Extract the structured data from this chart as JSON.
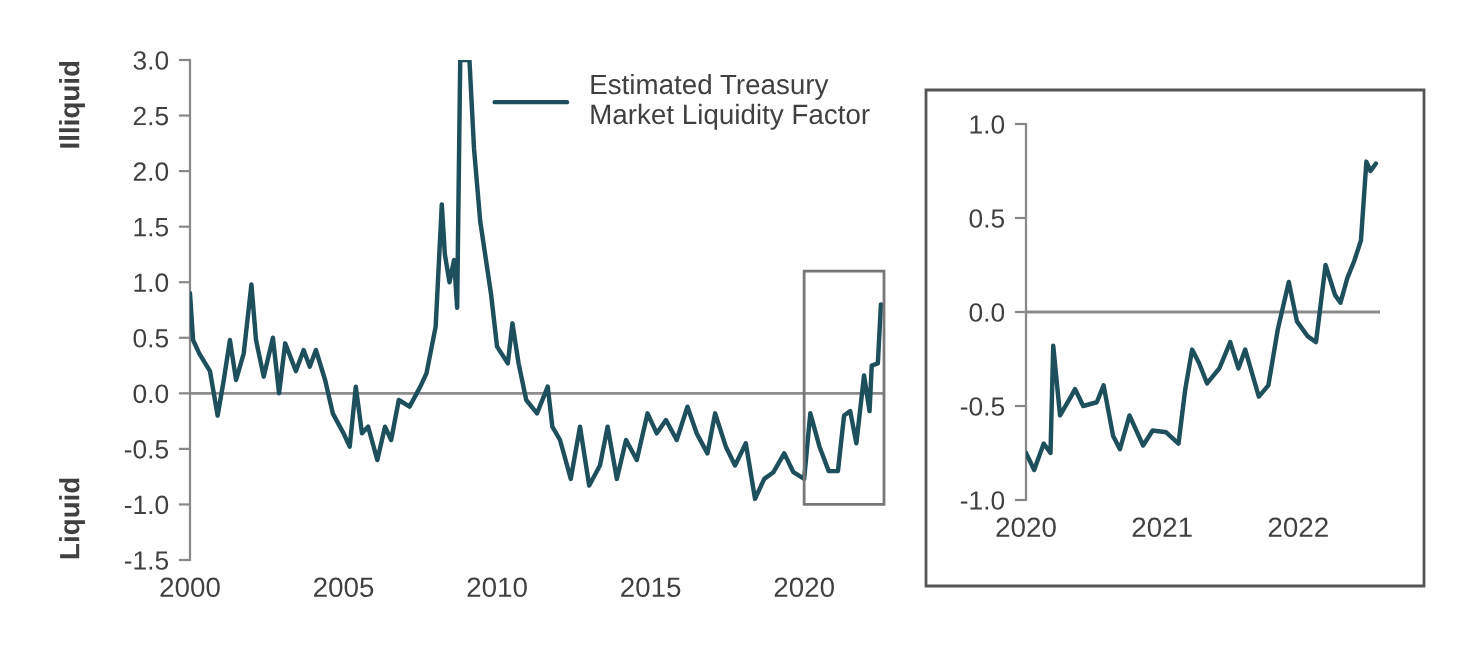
{
  "chart_data": [
    {
      "type": "line",
      "xlim": [
        2000,
        2022.6
      ],
      "ylim": [
        -1.5,
        3.0
      ],
      "xticks": [
        2000,
        2005,
        2010,
        2015,
        2020
      ],
      "yticks": [
        {
          "value": -1.5,
          "label": "-1.5"
        },
        {
          "value": -1.0,
          "label": "-1.0"
        },
        {
          "value": -0.5,
          "label": "-0.5"
        },
        {
          "value": 0.0,
          "label": "0.0"
        },
        {
          "value": 0.5,
          "label": "0.5"
        },
        {
          "value": 1.0,
          "label": "1.0"
        },
        {
          "value": 1.5,
          "label": "1.5"
        },
        {
          "value": 2.0,
          "label": "2.0"
        },
        {
          "value": 2.5,
          "label": "2.5"
        },
        {
          "value": 3.0,
          "label": "3.0"
        }
      ],
      "grid": false,
      "legend": "top right",
      "ref_lines": [
        {
          "axis": "y",
          "value": 0,
          "color": "#8c8c8c"
        }
      ],
      "annotations": [
        "Illiquid",
        "Liquid"
      ],
      "series": [
        {
          "name": "Estimated Treasury\nMarket Liquidity Factor",
          "color": "#1d4f5c",
          "x": [
            2000.0,
            2000.1,
            2000.3,
            2000.65,
            2000.9,
            2001.1,
            2001.3,
            2001.5,
            2001.75,
            2002.0,
            2002.15,
            2002.4,
            2002.7,
            2002.9,
            2003.1,
            2003.45,
            2003.7,
            2003.9,
            2004.1,
            2004.4,
            2004.65,
            2005.0,
            2005.2,
            2005.4,
            2005.6,
            2005.8,
            2006.1,
            2006.35,
            2006.55,
            2006.8,
            2007.15,
            2007.5,
            2007.7,
            2008.0,
            2008.2,
            2008.3,
            2008.45,
            2008.6,
            2008.7,
            2008.8,
            2009.1,
            2009.25,
            2009.45,
            2009.8,
            2010.0,
            2010.35,
            2010.5,
            2010.7,
            2010.95,
            2011.3,
            2011.65,
            2011.8,
            2012.05,
            2012.4,
            2012.7,
            2013.0,
            2013.35,
            2013.6,
            2013.9,
            2014.2,
            2014.55,
            2014.9,
            2015.2,
            2015.5,
            2015.85,
            2016.2,
            2016.5,
            2016.85,
            2017.1,
            2017.45,
            2017.75,
            2018.1,
            2018.4,
            2018.7,
            2019.0,
            2019.35,
            2019.65,
            2020.0,
            2020.2,
            2020.5,
            2020.8,
            2021.1,
            2021.3,
            2021.5,
            2021.7,
            2021.95,
            2022.13,
            2022.2,
            2022.4,
            2022.5,
            2022.57
          ],
          "values": [
            0.9,
            0.48,
            0.36,
            0.2,
            -0.2,
            0.12,
            0.48,
            0.12,
            0.36,
            0.98,
            0.48,
            0.15,
            0.5,
            0.0,
            0.45,
            0.2,
            0.39,
            0.24,
            0.39,
            0.12,
            -0.18,
            -0.36,
            -0.48,
            0.06,
            -0.36,
            -0.3,
            -0.6,
            -0.3,
            -0.42,
            -0.06,
            -0.12,
            0.06,
            0.18,
            0.6,
            1.7,
            1.25,
            1.0,
            1.2,
            0.77,
            3.0,
            3.0,
            2.2,
            1.55,
            0.9,
            0.42,
            0.27,
            0.63,
            0.27,
            -0.06,
            -0.18,
            0.06,
            -0.3,
            -0.42,
            -0.77,
            -0.3,
            -0.83,
            -0.65,
            -0.3,
            -0.77,
            -0.42,
            -0.6,
            -0.18,
            -0.36,
            -0.24,
            -0.42,
            -0.12,
            -0.36,
            -0.54,
            -0.18,
            -0.48,
            -0.65,
            -0.45,
            -0.95,
            -0.77,
            -0.71,
            -0.54,
            -0.71,
            -0.77,
            -0.18,
            -0.48,
            -0.7,
            -0.7,
            -0.2,
            -0.16,
            -0.45,
            0.16,
            -0.16,
            0.25,
            0.27,
            0.8,
            0.79
          ]
        }
      ]
    },
    {
      "type": "line",
      "xlim": [
        2020,
        2022.6
      ],
      "ylim": [
        -1.0,
        1.0
      ],
      "xticks": [
        2020,
        2021,
        2022
      ],
      "yticks": [
        {
          "value": -1.0,
          "label": "-1.0"
        },
        {
          "value": -0.5,
          "label": "-0.5"
        },
        {
          "value": 0.0,
          "label": "0.0"
        },
        {
          "value": 0.5,
          "label": "0.5"
        },
        {
          "value": 1.0,
          "label": "1.0"
        }
      ],
      "grid": false,
      "legend": false,
      "ref_lines": [
        {
          "axis": "y",
          "value": 0,
          "color": "#8c8c8c"
        }
      ],
      "series": [
        {
          "color": "#1d4f5c",
          "x": [
            2020.0,
            2020.06,
            2020.13,
            2020.18,
            2020.2,
            2020.25,
            2020.33,
            2020.36,
            2020.42,
            2020.52,
            2020.57,
            2020.64,
            2020.69,
            2020.76,
            2020.86,
            2020.93,
            2021.03,
            2021.12,
            2021.17,
            2021.22,
            2021.27,
            2021.33,
            2021.42,
            2021.5,
            2021.56,
            2021.61,
            2021.71,
            2021.78,
            2021.85,
            2021.93,
            2021.99,
            2022.07,
            2022.13,
            2022.2,
            2022.27,
            2022.31,
            2022.36,
            2022.41,
            2022.46,
            2022.5,
            2022.53,
            2022.57
          ],
          "values": [
            -0.75,
            -0.84,
            -0.7,
            -0.75,
            -0.18,
            -0.55,
            -0.45,
            -0.41,
            -0.5,
            -0.48,
            -0.39,
            -0.66,
            -0.73,
            -0.55,
            -0.71,
            -0.63,
            -0.64,
            -0.7,
            -0.41,
            -0.2,
            -0.27,
            -0.38,
            -0.3,
            -0.16,
            -0.3,
            -0.2,
            -0.45,
            -0.39,
            -0.09,
            0.16,
            -0.05,
            -0.13,
            -0.16,
            0.25,
            0.09,
            0.05,
            0.18,
            0.27,
            0.38,
            0.8,
            0.75,
            0.79
          ]
        }
      ]
    }
  ]
}
